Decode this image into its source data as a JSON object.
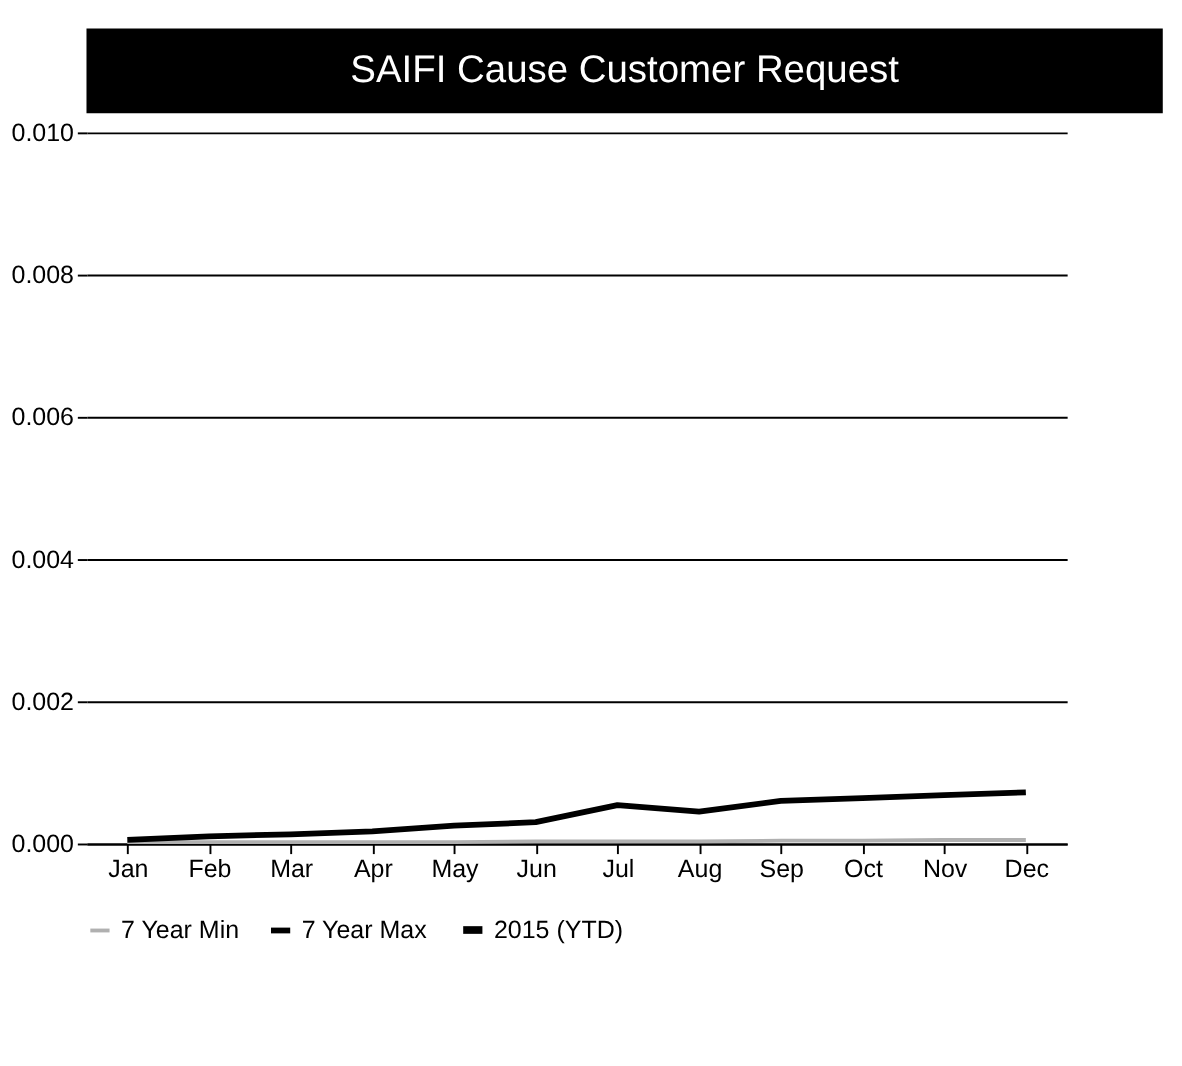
{
  "chart_data": {
    "type": "line",
    "title": "SAIFI Cause Customer Request",
    "categories": [
      "Jan",
      "Feb",
      "Mar",
      "Apr",
      "May",
      "Jun",
      "Jul",
      "Aug",
      "Sep",
      "Oct",
      "Nov",
      "Dec"
    ],
    "series": [
      {
        "name": "7 Year Min",
        "color": "#b0b0b0",
        "values": [
          2e-05,
          2e-05,
          2e-05,
          2e-05,
          2e-05,
          3e-05,
          3e-05,
          3e-05,
          4e-05,
          4e-05,
          5e-05,
          5e-05
        ]
      },
      {
        "name": "7 Year Max",
        "color": "#000000",
        "values": [
          5e-05,
          0.0001,
          0.00013,
          0.00017,
          0.00025,
          0.0003,
          0.00054,
          0.00045,
          0.0006,
          0.00064,
          0.00068,
          0.00072
        ]
      },
      {
        "name": "2015 (YTD)",
        "color": "#000000",
        "values": [
          null,
          null,
          null,
          null,
          null,
          null,
          null,
          null,
          null,
          null,
          null,
          null
        ]
      }
    ],
    "ylim": [
      0,
      0.01
    ],
    "yticks": [
      {
        "value": 0,
        "label": "0.000"
      },
      {
        "value": 0.002,
        "label": "0.002"
      },
      {
        "value": 0.004,
        "label": "0.004"
      },
      {
        "value": 0.006,
        "label": "0.006"
      },
      {
        "value": 0.008,
        "label": "0.008"
      },
      {
        "value": 0.01,
        "label": "0.010"
      }
    ],
    "grid": "y",
    "legend": "bottom",
    "marker": "none",
    "line_style": "solid"
  }
}
